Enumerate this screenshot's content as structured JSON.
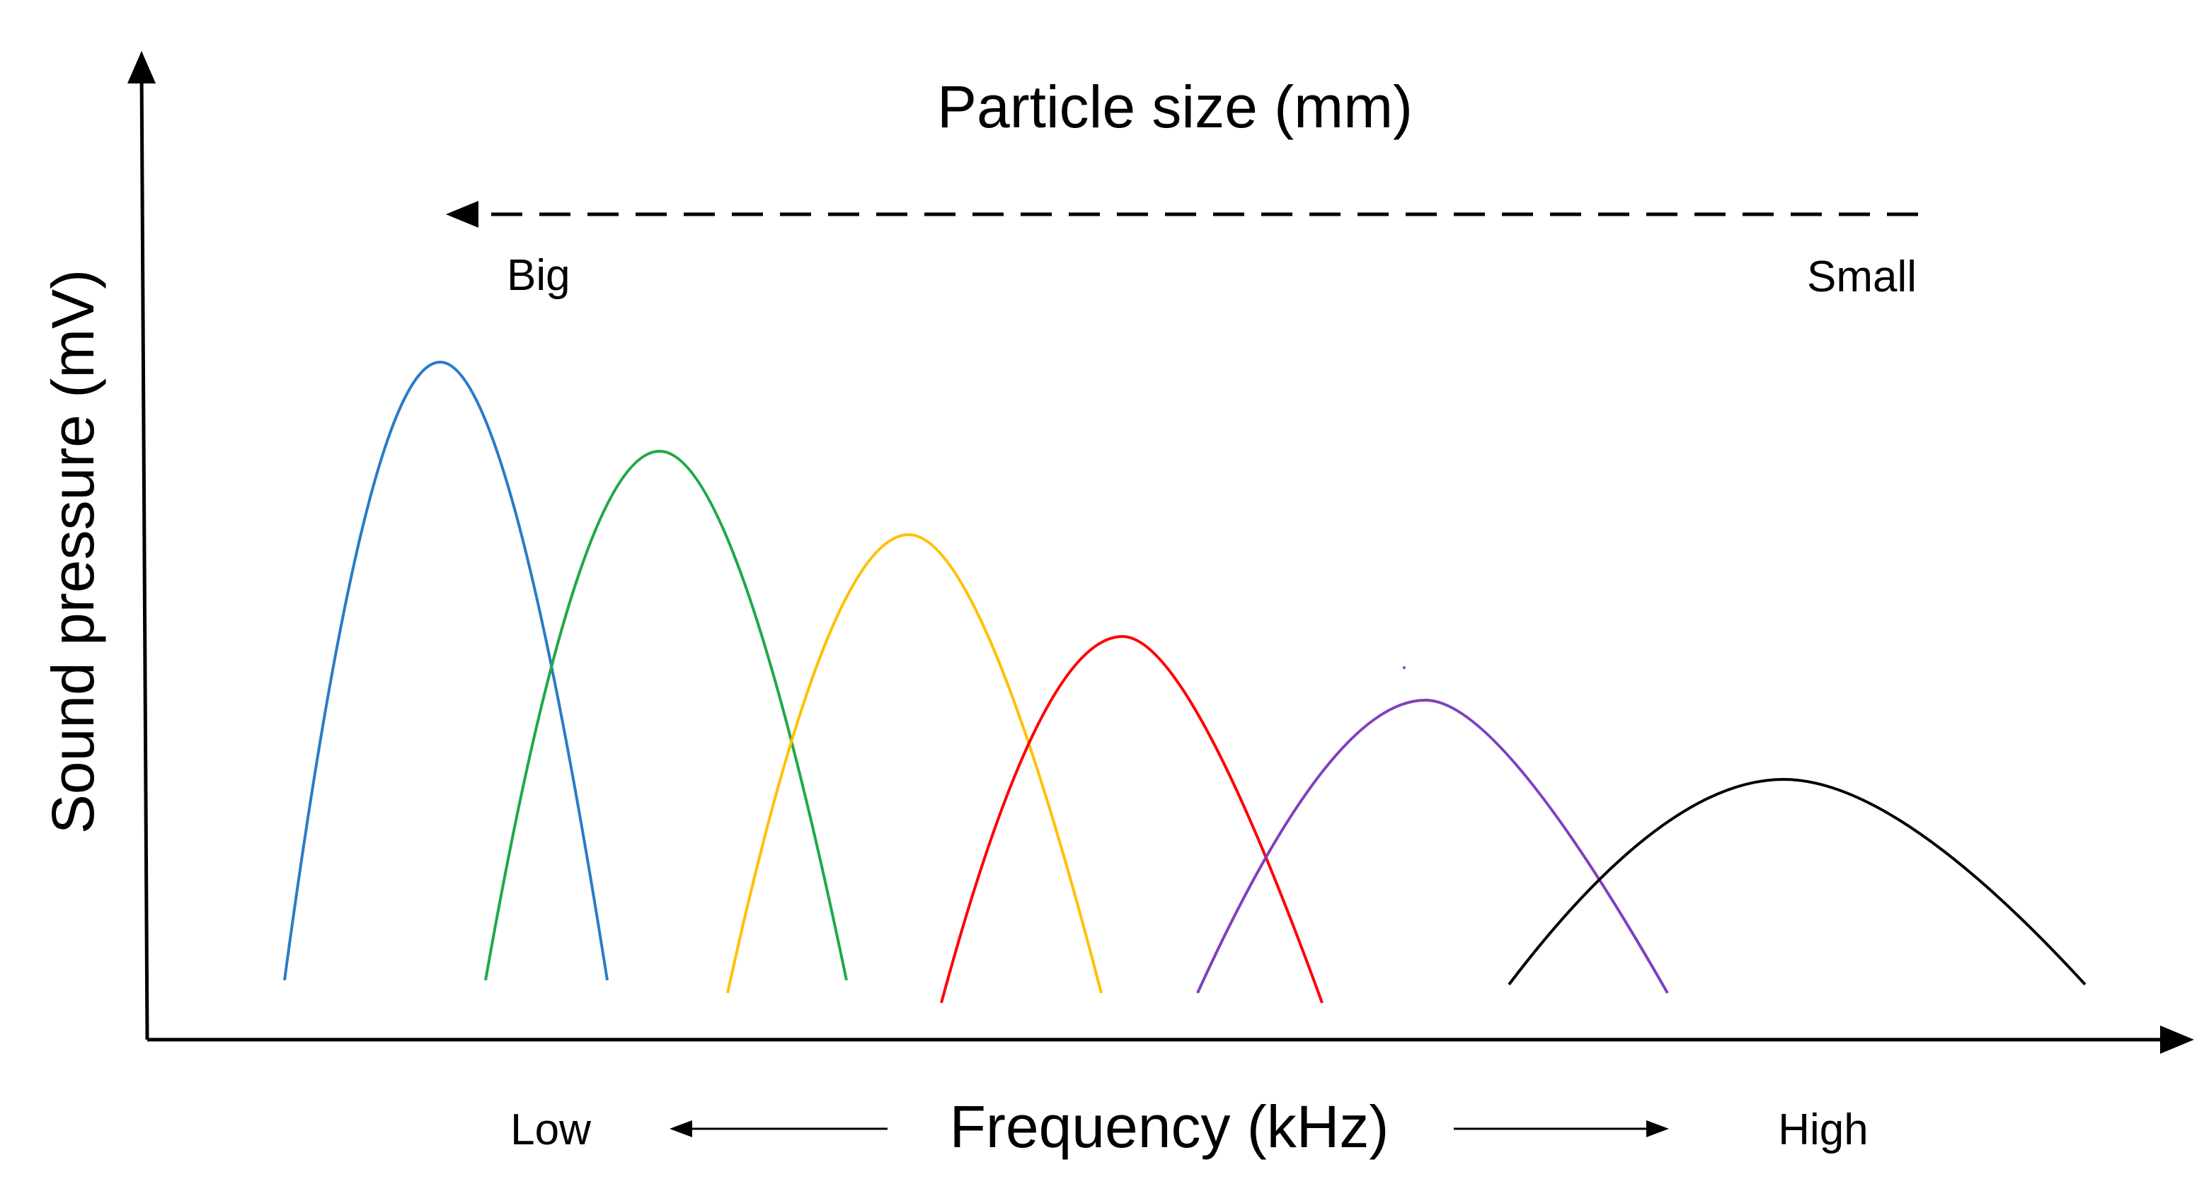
{
  "colors": {
    "axis": "#000000",
    "background": "#ffffff",
    "curves": [
      "#2a7bc6",
      "#1fa84a",
      "#ffc000",
      "#ff0000",
      "#7f3fbf",
      "#000000"
    ]
  },
  "labels": {
    "y_axis": "Sound pressure (mV)",
    "x_axis": "Frequency (kHz)",
    "x_low": "Low",
    "x_high": "High",
    "size_title": "Particle size (mm)",
    "size_big": "Big",
    "size_small": "Small"
  },
  "curves": [
    {
      "color": "#2a7bc6"
    },
    {
      "color": "#1fa84a"
    },
    {
      "color": "#ffc000"
    },
    {
      "color": "#ff0000"
    },
    {
      "color": "#7f3fbf"
    },
    {
      "color": "#000000"
    }
  ]
}
